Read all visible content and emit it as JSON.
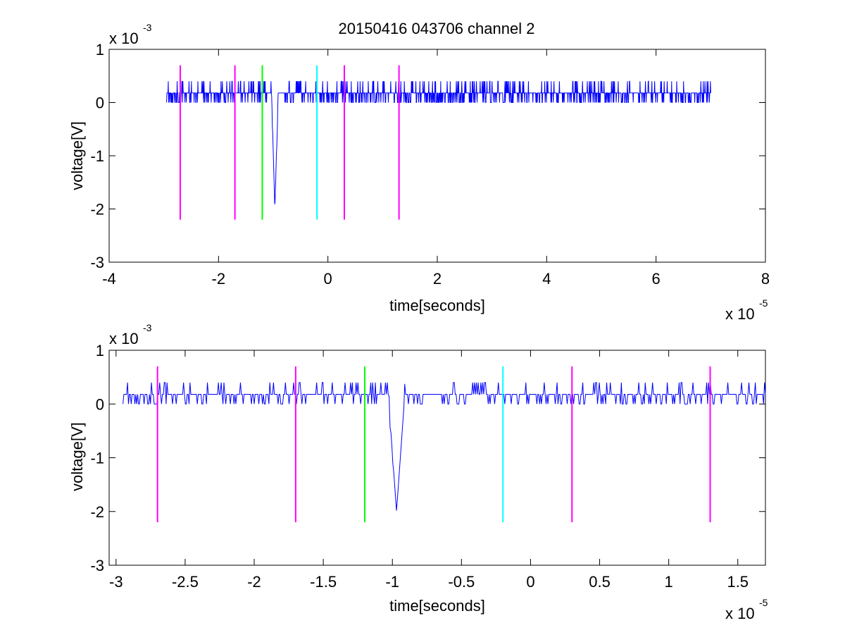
{
  "figure": {
    "title": "20150416 043706 channel 2",
    "colors": {
      "signal": "#0000ff",
      "magenta": "#ff00ff",
      "green": "#00ff00",
      "cyan": "#00ffff",
      "axes": "#000000"
    }
  },
  "chart_data": [
    {
      "type": "line",
      "title": "20150416 043706 channel 2",
      "xlabel": "time[seconds]",
      "ylabel": "voltage[V]",
      "x_exponent_label": "x 10",
      "x_exponent": "-5",
      "y_exponent_label": "x 10",
      "y_exponent": "-3",
      "xlim": [
        -4,
        8
      ],
      "ylim": [
        -3,
        1
      ],
      "xticks": [
        -4,
        -2,
        0,
        2,
        4,
        6,
        8
      ],
      "xtick_labels": [
        "-4",
        "-2",
        "0",
        "2",
        "4",
        "6",
        "8"
      ],
      "yticks": [
        1,
        0,
        -1,
        -2,
        -3
      ],
      "ytick_labels": [
        "1",
        "0",
        "-1",
        "-2",
        "-3"
      ],
      "grid": false,
      "series": [
        {
          "color": "#0000ff",
          "x_range": [
            -2.95,
            7.0
          ],
          "baseline": 0.18,
          "noise_levels": [
            0.0,
            0.18,
            0.4
          ],
          "spike": {
            "x": -0.97,
            "min": -2.0
          }
        }
      ],
      "markers": [
        {
          "x": -2.7,
          "color": "#ff00ff",
          "y_range": [
            -2.2,
            0.7
          ]
        },
        {
          "x": -1.7,
          "color": "#ff00ff",
          "y_range": [
            -2.2,
            0.7
          ]
        },
        {
          "x": -1.2,
          "color": "#00ff00",
          "y_range": [
            -2.2,
            0.7
          ]
        },
        {
          "x": -0.2,
          "color": "#00ffff",
          "y_range": [
            -2.2,
            0.7
          ]
        },
        {
          "x": 0.3,
          "color": "#ff00ff",
          "y_range": [
            -2.2,
            0.7
          ]
        },
        {
          "x": 1.3,
          "color": "#ff00ff",
          "y_range": [
            -2.2,
            0.7
          ]
        }
      ]
    },
    {
      "type": "line",
      "title": "",
      "xlabel": "time[seconds]",
      "ylabel": "voltage[V]",
      "x_exponent_label": "x 10",
      "x_exponent": "-5",
      "y_exponent_label": "x 10",
      "y_exponent": "-3",
      "xlim": [
        -3.05,
        1.7
      ],
      "ylim": [
        -3,
        1
      ],
      "xticks": [
        -3,
        -2.5,
        -2,
        -1.5,
        -1,
        -0.5,
        0,
        0.5,
        1,
        1.5
      ],
      "xtick_labels": [
        "-3",
        "-2.5",
        "-2",
        "-1.5",
        "-1",
        "-0.5",
        "0",
        "0.5",
        "1",
        "1.5"
      ],
      "yticks": [
        1,
        0,
        -1,
        -2,
        -3
      ],
      "ytick_labels": [
        "1",
        "0",
        "-1",
        "-2",
        "-3"
      ],
      "grid": false,
      "series": [
        {
          "color": "#0000ff",
          "x_range": [
            -2.95,
            1.7
          ],
          "baseline": 0.18,
          "noise_levels": [
            0.0,
            0.18,
            0.4
          ],
          "spike": {
            "x": -0.97,
            "min": -2.0
          }
        }
      ],
      "markers": [
        {
          "x": -2.7,
          "color": "#ff00ff",
          "y_range": [
            -2.2,
            0.7
          ]
        },
        {
          "x": -1.7,
          "color": "#ff00ff",
          "y_range": [
            -2.2,
            0.7
          ]
        },
        {
          "x": -1.2,
          "color": "#00ff00",
          "y_range": [
            -2.2,
            0.7
          ]
        },
        {
          "x": -0.2,
          "color": "#00ffff",
          "y_range": [
            -2.2,
            0.7
          ]
        },
        {
          "x": 0.3,
          "color": "#ff00ff",
          "y_range": [
            -2.2,
            0.7
          ]
        },
        {
          "x": 1.3,
          "color": "#ff00ff",
          "y_range": [
            -2.2,
            0.7
          ]
        }
      ]
    }
  ]
}
